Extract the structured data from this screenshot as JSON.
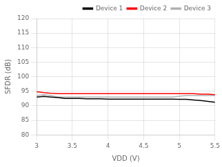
{
  "chart_data": {
    "type": "line",
    "xlabel": "VDD (V)",
    "ylabel": "SFDR (dB)",
    "x": [
      3.0,
      3.1,
      3.2,
      3.3,
      3.4,
      3.5,
      3.6,
      3.7,
      3.8,
      3.9,
      4.0,
      4.1,
      4.2,
      4.3,
      4.4,
      4.5,
      4.6,
      4.7,
      4.8,
      4.9,
      5.0,
      5.1,
      5.2,
      5.3,
      5.4,
      5.5
    ],
    "series": [
      {
        "name": "Device 1",
        "color": "#000000",
        "values": [
          93.0,
          93.2,
          93.0,
          92.8,
          92.5,
          92.5,
          92.5,
          92.4,
          92.4,
          92.4,
          92.3,
          92.3,
          92.3,
          92.3,
          92.3,
          92.3,
          92.3,
          92.3,
          92.3,
          92.3,
          92.2,
          92.2,
          92.0,
          91.8,
          91.5,
          91.2
        ]
      },
      {
        "name": "Device 2",
        "color": "#ff0000",
        "values": [
          94.8,
          94.5,
          94.3,
          94.2,
          94.2,
          94.2,
          94.2,
          94.2,
          94.2,
          94.2,
          94.2,
          94.2,
          94.2,
          94.2,
          94.2,
          94.2,
          94.2,
          94.2,
          94.2,
          94.2,
          94.2,
          94.2,
          94.2,
          94.0,
          94.0,
          93.8
        ]
      },
      {
        "name": "Device 3",
        "color": "#b0b0b0",
        "values": [
          93.5,
          93.8,
          93.5,
          93.0,
          93.0,
          93.0,
          93.0,
          93.0,
          93.0,
          93.0,
          93.0,
          93.0,
          93.0,
          93.0,
          93.0,
          93.0,
          93.0,
          93.0,
          93.0,
          93.0,
          93.3,
          93.5,
          93.5,
          93.5,
          93.5,
          93.5
        ]
      }
    ],
    "xlim": [
      3,
      5.5
    ],
    "ylim": [
      80,
      120
    ],
    "xticks": [
      3,
      3.5,
      4,
      4.5,
      5,
      5.5
    ],
    "yticks": [
      80,
      85,
      90,
      95,
      100,
      105,
      110,
      115,
      120
    ],
    "grid": true,
    "legend": "upper right"
  }
}
